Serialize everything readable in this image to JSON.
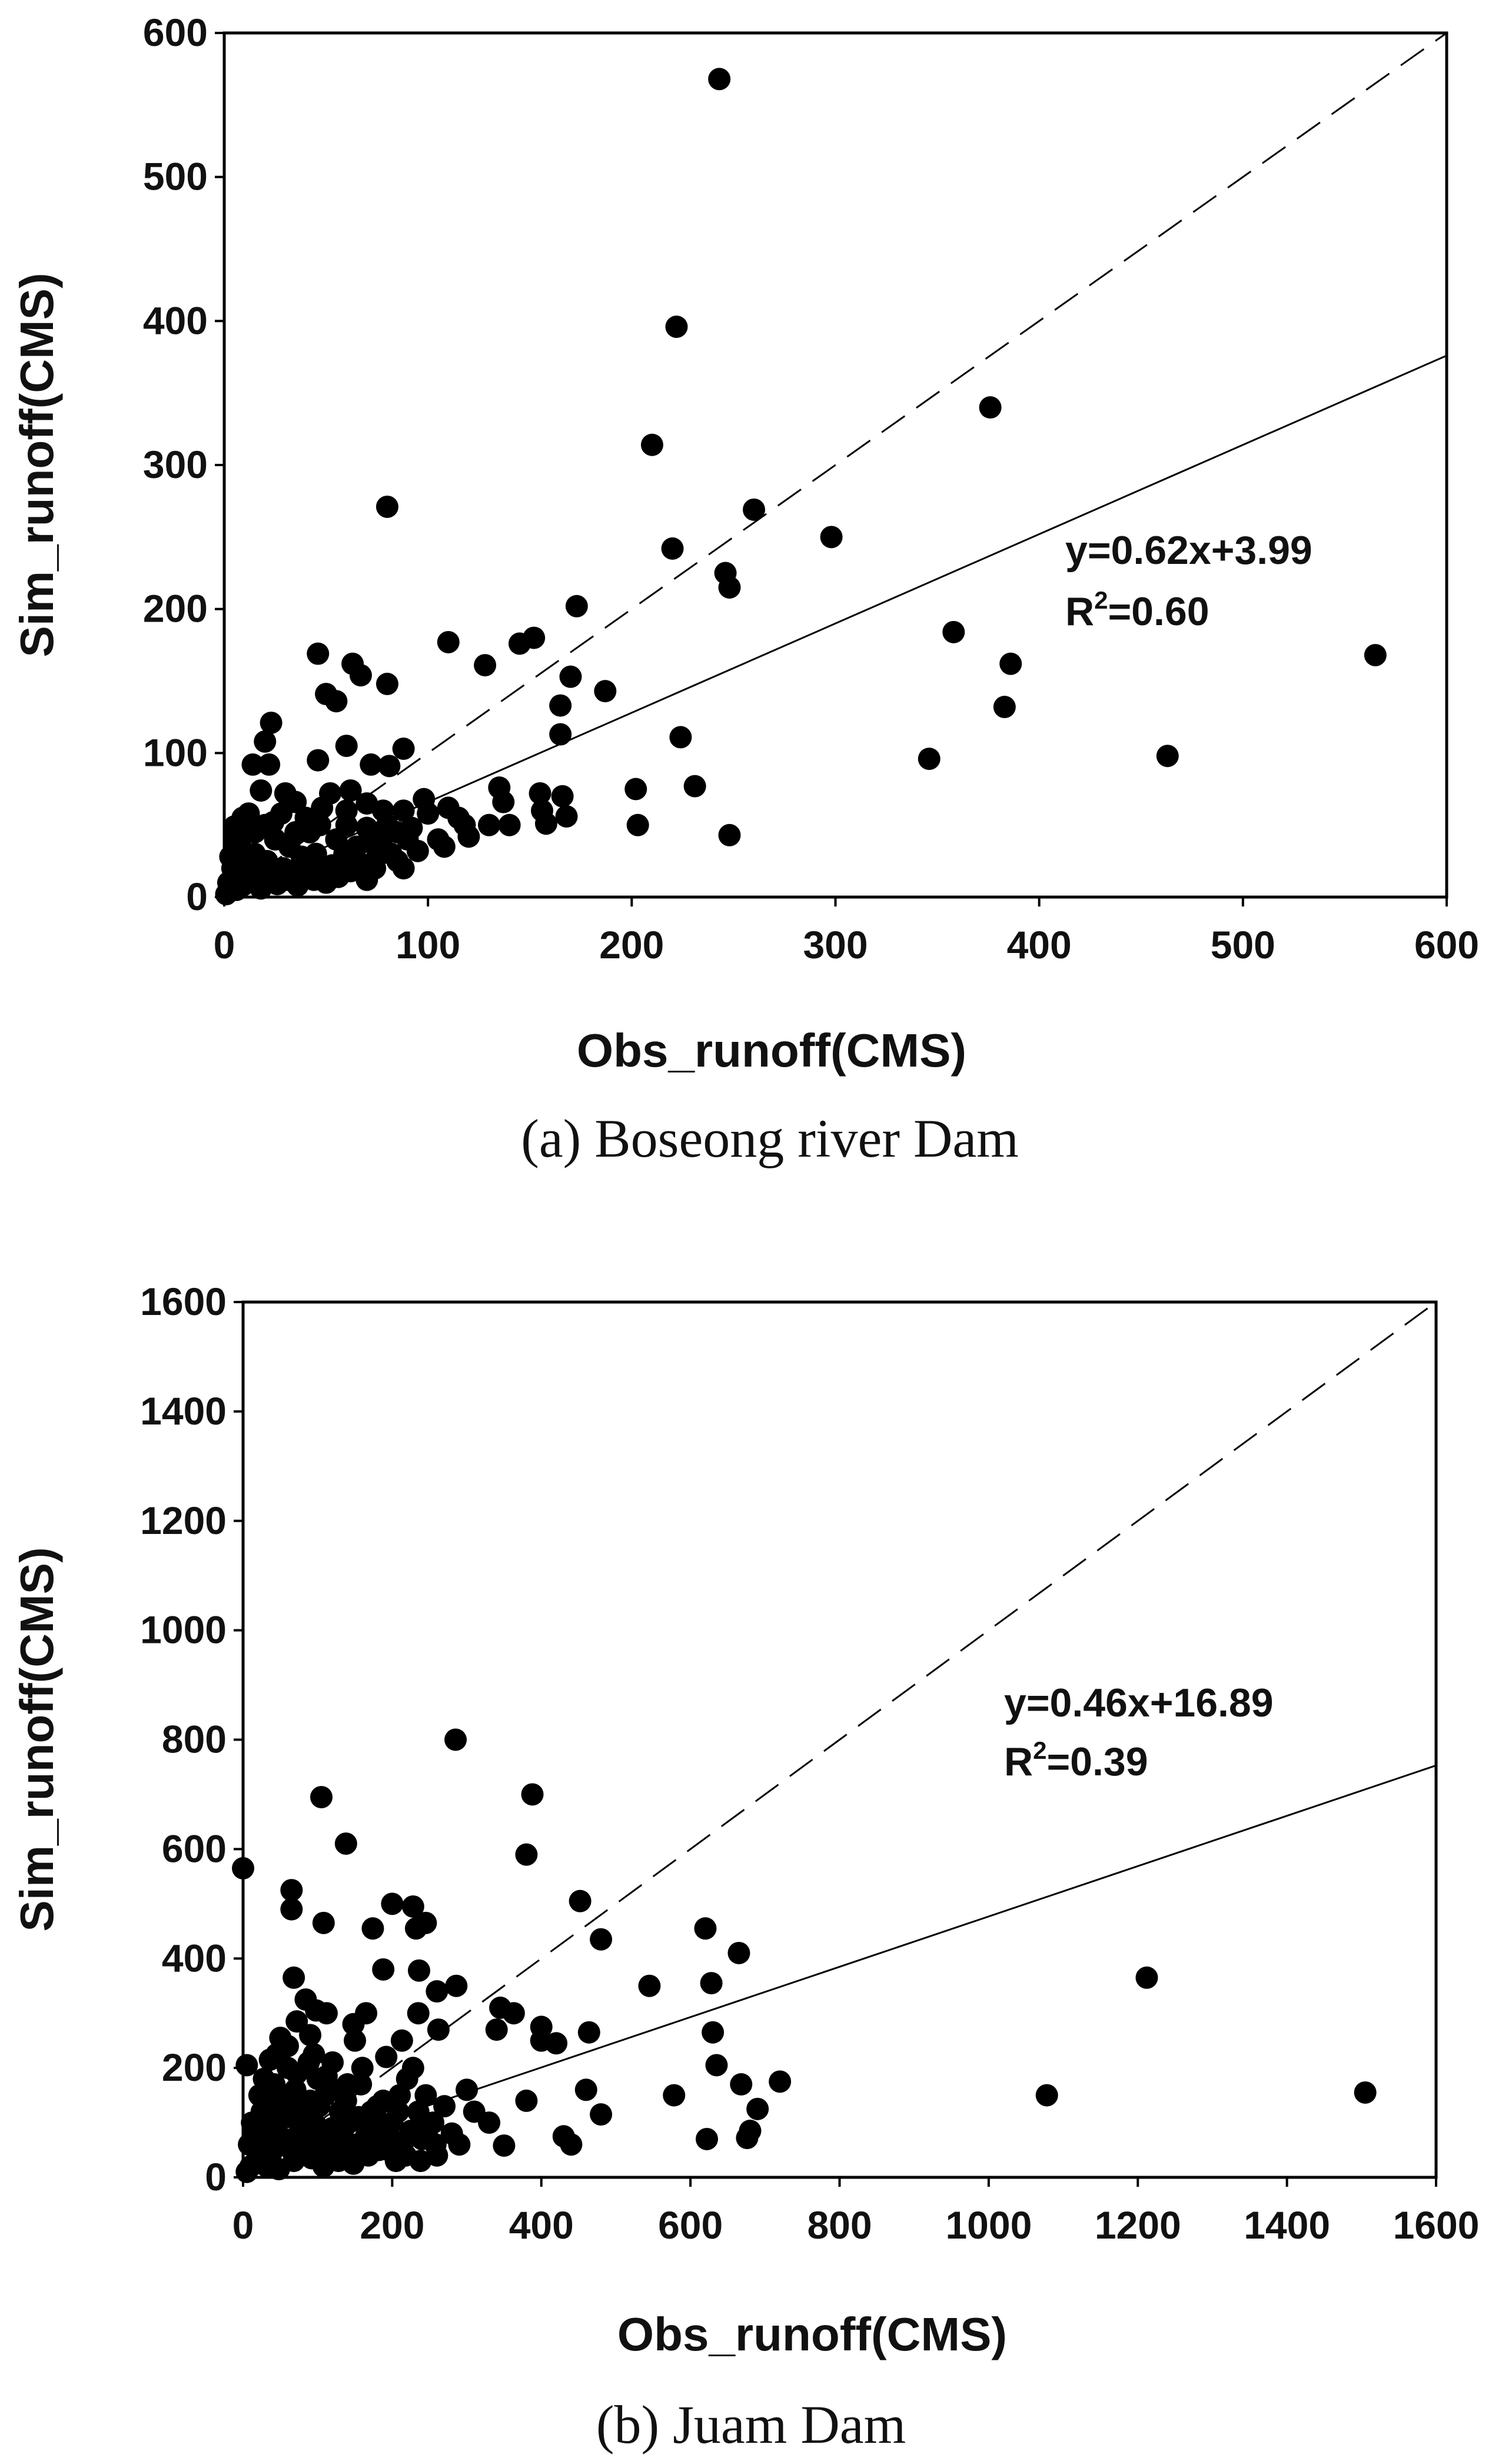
{
  "chart_data": [
    {
      "type": "scatter",
      "caption": "(a)  Boseong  river  Dam",
      "xlabel": "Obs_runoff(CMS)",
      "ylabel": "Sim_runoff(CMS)",
      "xlim": [
        0,
        600
      ],
      "ylim": [
        0,
        600
      ],
      "xticks": [
        "0",
        "100",
        "200",
        "300",
        "400",
        "500",
        "600"
      ],
      "yticks": [
        "0",
        "100",
        "200",
        "300",
        "400",
        "500",
        "600"
      ],
      "equation": "y=0.62x+3.99",
      "r2_prefix": "R",
      "r2_exp": "2",
      "r2_suffix": "=0.60",
      "fit": {
        "slope": 0.62,
        "intercept": 3.99
      },
      "one_to_one": true,
      "points": [
        [
          243,
          568
        ],
        [
          222,
          396
        ],
        [
          210,
          314
        ],
        [
          80,
          271
        ],
        [
          376,
          340
        ],
        [
          260,
          269
        ],
        [
          298,
          250
        ],
        [
          220,
          242
        ],
        [
          246,
          225
        ],
        [
          248,
          215
        ],
        [
          173,
          202
        ],
        [
          358,
          184
        ],
        [
          152,
          180
        ],
        [
          145,
          176
        ],
        [
          110,
          177
        ],
        [
          386,
          162
        ],
        [
          565,
          168
        ],
        [
          46,
          169
        ],
        [
          63,
          162
        ],
        [
          128,
          161
        ],
        [
          67,
          154
        ],
        [
          170,
          153
        ],
        [
          187,
          143
        ],
        [
          50,
          141
        ],
        [
          55,
          136
        ],
        [
          80,
          148
        ],
        [
          383,
          132
        ],
        [
          165,
          133
        ],
        [
          165,
          113
        ],
        [
          224,
          111
        ],
        [
          23,
          121
        ],
        [
          346,
          96
        ],
        [
          463,
          98
        ],
        [
          22,
          92
        ],
        [
          20,
          108
        ],
        [
          14,
          92
        ],
        [
          46,
          95
        ],
        [
          60,
          105
        ],
        [
          72,
          92
        ],
        [
          81,
          91
        ],
        [
          88,
          103
        ],
        [
          231,
          77
        ],
        [
          202,
          75
        ],
        [
          135,
          76
        ],
        [
          137,
          66
        ],
        [
          166,
          70
        ],
        [
          155,
          72
        ],
        [
          156,
          60
        ],
        [
          168,
          56
        ],
        [
          158,
          51
        ],
        [
          203,
          50
        ],
        [
          248,
          43
        ],
        [
          110,
          62
        ],
        [
          115,
          55
        ],
        [
          100,
          58
        ],
        [
          88,
          60
        ],
        [
          80,
          50
        ],
        [
          70,
          48
        ],
        [
          60,
          50
        ],
        [
          95,
          32
        ],
        [
          85,
          25
        ],
        [
          90,
          40
        ],
        [
          105,
          40
        ],
        [
          120,
          42
        ],
        [
          130,
          50
        ],
        [
          140,
          50
        ],
        [
          108,
          35
        ],
        [
          118,
          50
        ],
        [
          98,
          68
        ],
        [
          62,
          74
        ],
        [
          52,
          72
        ],
        [
          48,
          62
        ],
        [
          40,
          55
        ],
        [
          35,
          66
        ],
        [
          30,
          72
        ],
        [
          18,
          74
        ],
        [
          12,
          58
        ],
        [
          5,
          49
        ],
        [
          8,
          35
        ],
        [
          10,
          45
        ],
        [
          15,
          30
        ],
        [
          20,
          50
        ],
        [
          25,
          40
        ],
        [
          28,
          58
        ],
        [
          32,
          35
        ],
        [
          38,
          28
        ],
        [
          42,
          45
        ],
        [
          45,
          30
        ],
        [
          55,
          40
        ],
        [
          58,
          25
        ],
        [
          65,
          35
        ],
        [
          68,
          20
        ],
        [
          72,
          38
        ],
        [
          75,
          28
        ],
        [
          78,
          42
        ],
        [
          82,
          30
        ],
        [
          88,
          20
        ],
        [
          92,
          48
        ],
        [
          2,
          10
        ],
        [
          4,
          20
        ],
        [
          6,
          5
        ],
        [
          3,
          28
        ],
        [
          7,
          15
        ],
        [
          9,
          8
        ],
        [
          11,
          22
        ],
        [
          13,
          12
        ],
        [
          16,
          18
        ],
        [
          18,
          6
        ],
        [
          21,
          25
        ],
        [
          23,
          14
        ],
        [
          26,
          9
        ],
        [
          29,
          20
        ],
        [
          31,
          12
        ],
        [
          34,
          18
        ],
        [
          36,
          8
        ],
        [
          39,
          16
        ],
        [
          41,
          22
        ],
        [
          44,
          12
        ],
        [
          47,
          18
        ],
        [
          50,
          10
        ],
        [
          53,
          22
        ],
        [
          56,
          14
        ],
        [
          59,
          30
        ],
        [
          62,
          18
        ],
        [
          66,
          24
        ],
        [
          70,
          12
        ],
        [
          74,
          20
        ],
        [
          1,
          2
        ],
        [
          5,
          40
        ],
        [
          9,
          55
        ],
        [
          15,
          45
        ],
        [
          24,
          52
        ],
        [
          35,
          45
        ],
        [
          47,
          50
        ],
        [
          60,
          60
        ],
        [
          70,
          65
        ],
        [
          78,
          60
        ],
        [
          85,
          45
        ]
      ]
    },
    {
      "type": "scatter",
      "caption": "(b)  Juam  Dam",
      "xlabel": "Obs_runoff(CMS)",
      "ylabel": "Sim_runoff(CMS)",
      "xlim": [
        0,
        1600
      ],
      "ylim": [
        0,
        1600
      ],
      "xticks": [
        "0",
        "200",
        "400",
        "600",
        "800",
        "1000",
        "1200",
        "1400",
        "1600"
      ],
      "yticks": [
        "0",
        "200",
        "400",
        "600",
        "800",
        "1000",
        "1200",
        "1400",
        "1600"
      ],
      "equation": "y=0.46x+16.89",
      "r2_prefix": "R",
      "r2_exp": "2",
      "r2_suffix": "=0.39",
      "fit": {
        "slope": 0.46,
        "intercept": 16.89
      },
      "one_to_one": true,
      "points": [
        [
          285,
          800
        ],
        [
          105,
          695
        ],
        [
          388,
          700
        ],
        [
          138,
          610
        ],
        [
          0,
          565
        ],
        [
          380,
          590
        ],
        [
          65,
          525
        ],
        [
          452,
          505
        ],
        [
          200,
          500
        ],
        [
          228,
          495
        ],
        [
          65,
          490
        ],
        [
          620,
          455
        ],
        [
          108,
          465
        ],
        [
          174,
          455
        ],
        [
          232,
          455
        ],
        [
          245,
          465
        ],
        [
          480,
          435
        ],
        [
          665,
          410
        ],
        [
          188,
          380
        ],
        [
          236,
          378
        ],
        [
          68,
          365
        ],
        [
          1212,
          365
        ],
        [
          628,
          355
        ],
        [
          545,
          350
        ],
        [
          286,
          350
        ],
        [
          260,
          340
        ],
        [
          84,
          325
        ],
        [
          345,
          310
        ],
        [
          363,
          300
        ],
        [
          235,
          300
        ],
        [
          165,
          300
        ],
        [
          98,
          305
        ],
        [
          112,
          300
        ],
        [
          72,
          285
        ],
        [
          400,
          275
        ],
        [
          464,
          265
        ],
        [
          630,
          265
        ],
        [
          262,
          270
        ],
        [
          340,
          270
        ],
        [
          400,
          250
        ],
        [
          420,
          245
        ],
        [
          148,
          280
        ],
        [
          150,
          250
        ],
        [
          213,
          250
        ],
        [
          50,
          255
        ],
        [
          60,
          240
        ],
        [
          5,
          205
        ],
        [
          36,
          215
        ],
        [
          45,
          225
        ],
        [
          95,
          225
        ],
        [
          120,
          210
        ],
        [
          90,
          260
        ],
        [
          635,
          205
        ],
        [
          668,
          170
        ],
        [
          720,
          175
        ],
        [
          690,
          125
        ],
        [
          680,
          85
        ],
        [
          676,
          72
        ],
        [
          622,
          70
        ],
        [
          578,
          150
        ],
        [
          1078,
          150
        ],
        [
          1505,
          155
        ],
        [
          380,
          140
        ],
        [
          300,
          160
        ],
        [
          310,
          120
        ],
        [
          330,
          100
        ],
        [
          350,
          58
        ],
        [
          440,
          60
        ],
        [
          430,
          75
        ],
        [
          480,
          115
        ],
        [
          460,
          160
        ],
        [
          260,
          40
        ],
        [
          240,
          70
        ],
        [
          200,
          100
        ],
        [
          210,
          150
        ],
        [
          220,
          180
        ],
        [
          180,
          130
        ],
        [
          160,
          200
        ],
        [
          140,
          170
        ],
        [
          130,
          120
        ],
        [
          120,
          90
        ],
        [
          110,
          150
        ],
        [
          100,
          180
        ],
        [
          90,
          140
        ],
        [
          80,
          100
        ],
        [
          70,
          160
        ],
        [
          60,
          200
        ],
        [
          50,
          130
        ],
        [
          40,
          90
        ],
        [
          30,
          60
        ],
        [
          20,
          40
        ],
        [
          10,
          20
        ],
        [
          5,
          10
        ],
        [
          15,
          80
        ],
        [
          25,
          120
        ],
        [
          35,
          150
        ],
        [
          45,
          100
        ],
        [
          55,
          70
        ],
        [
          65,
          50
        ],
        [
          75,
          80
        ],
        [
          85,
          110
        ],
        [
          95,
          60
        ],
        [
          105,
          40
        ],
        [
          115,
          70
        ],
        [
          125,
          55
        ],
        [
          135,
          90
        ],
        [
          145,
          45
        ],
        [
          155,
          110
        ],
        [
          165,
          75
        ],
        [
          175,
          60
        ],
        [
          185,
          95
        ],
        [
          195,
          50
        ],
        [
          205,
          30
        ],
        [
          215,
          65
        ],
        [
          225,
          85
        ],
        [
          235,
          120
        ],
        [
          245,
          150
        ],
        [
          255,
          100
        ],
        [
          270,
          130
        ],
        [
          280,
          80
        ],
        [
          290,
          60
        ],
        [
          8,
          60
        ],
        [
          12,
          100
        ],
        [
          18,
          30
        ],
        [
          22,
          150
        ],
        [
          28,
          180
        ],
        [
          32,
          20
        ],
        [
          38,
          45
        ],
        [
          42,
          170
        ],
        [
          48,
          15
        ],
        [
          52,
          60
        ],
        [
          58,
          110
        ],
        [
          62,
          145
        ],
        [
          68,
          30
        ],
        [
          72,
          190
        ],
        [
          78,
          125
        ],
        [
          82,
          55
        ],
        [
          88,
          210
        ],
        [
          92,
          35
        ],
        [
          98,
          95
        ],
        [
          102,
          130
        ],
        [
          108,
          20
        ],
        [
          112,
          185
        ],
        [
          118,
          45
        ],
        [
          122,
          160
        ],
        [
          128,
          30
        ],
        [
          132,
          80
        ],
        [
          138,
          140
        ],
        [
          142,
          100
        ],
        [
          148,
          25
        ],
        [
          152,
          60
        ],
        [
          158,
          170
        ],
        [
          168,
          40
        ],
        [
          172,
          120
        ],
        [
          178,
          90
        ],
        [
          182,
          50
        ],
        [
          188,
          140
        ],
        [
          192,
          220
        ],
        [
          198,
          70
        ],
        [
          208,
          120
        ],
        [
          218,
          40
        ],
        [
          228,
          200
        ],
        [
          238,
          30
        ],
        [
          248,
          90
        ],
        [
          258,
          60
        ]
      ]
    }
  ]
}
